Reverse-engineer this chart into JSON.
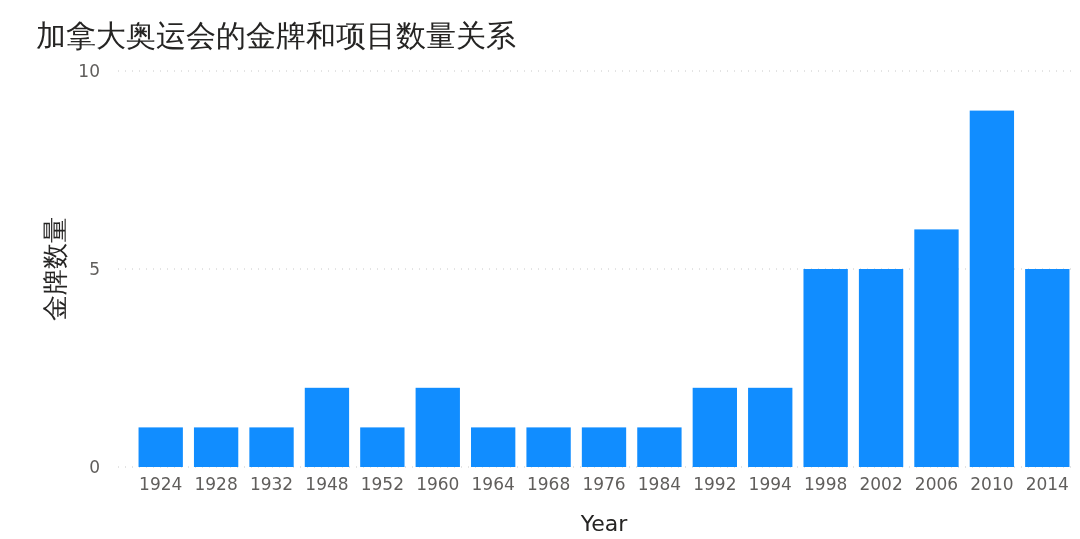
{
  "chart_data": {
    "type": "bar",
    "title": "加拿大奥运会的金牌和项目数量关系",
    "xlabel": "Year",
    "ylabel": "金牌数量",
    "categories": [
      "1924",
      "1928",
      "1932",
      "1948",
      "1952",
      "1960",
      "1964",
      "1968",
      "1976",
      "1984",
      "1992",
      "1994",
      "1998",
      "2002",
      "2006",
      "2010",
      "2014"
    ],
    "values": [
      1,
      1,
      1,
      2,
      1,
      2,
      1,
      1,
      1,
      1,
      2,
      2,
      5,
      5,
      6,
      9,
      5
    ],
    "color": "#118dff",
    "ylim": [
      0,
      10
    ],
    "yticks": [
      0,
      5,
      10
    ],
    "grid": "y"
  }
}
